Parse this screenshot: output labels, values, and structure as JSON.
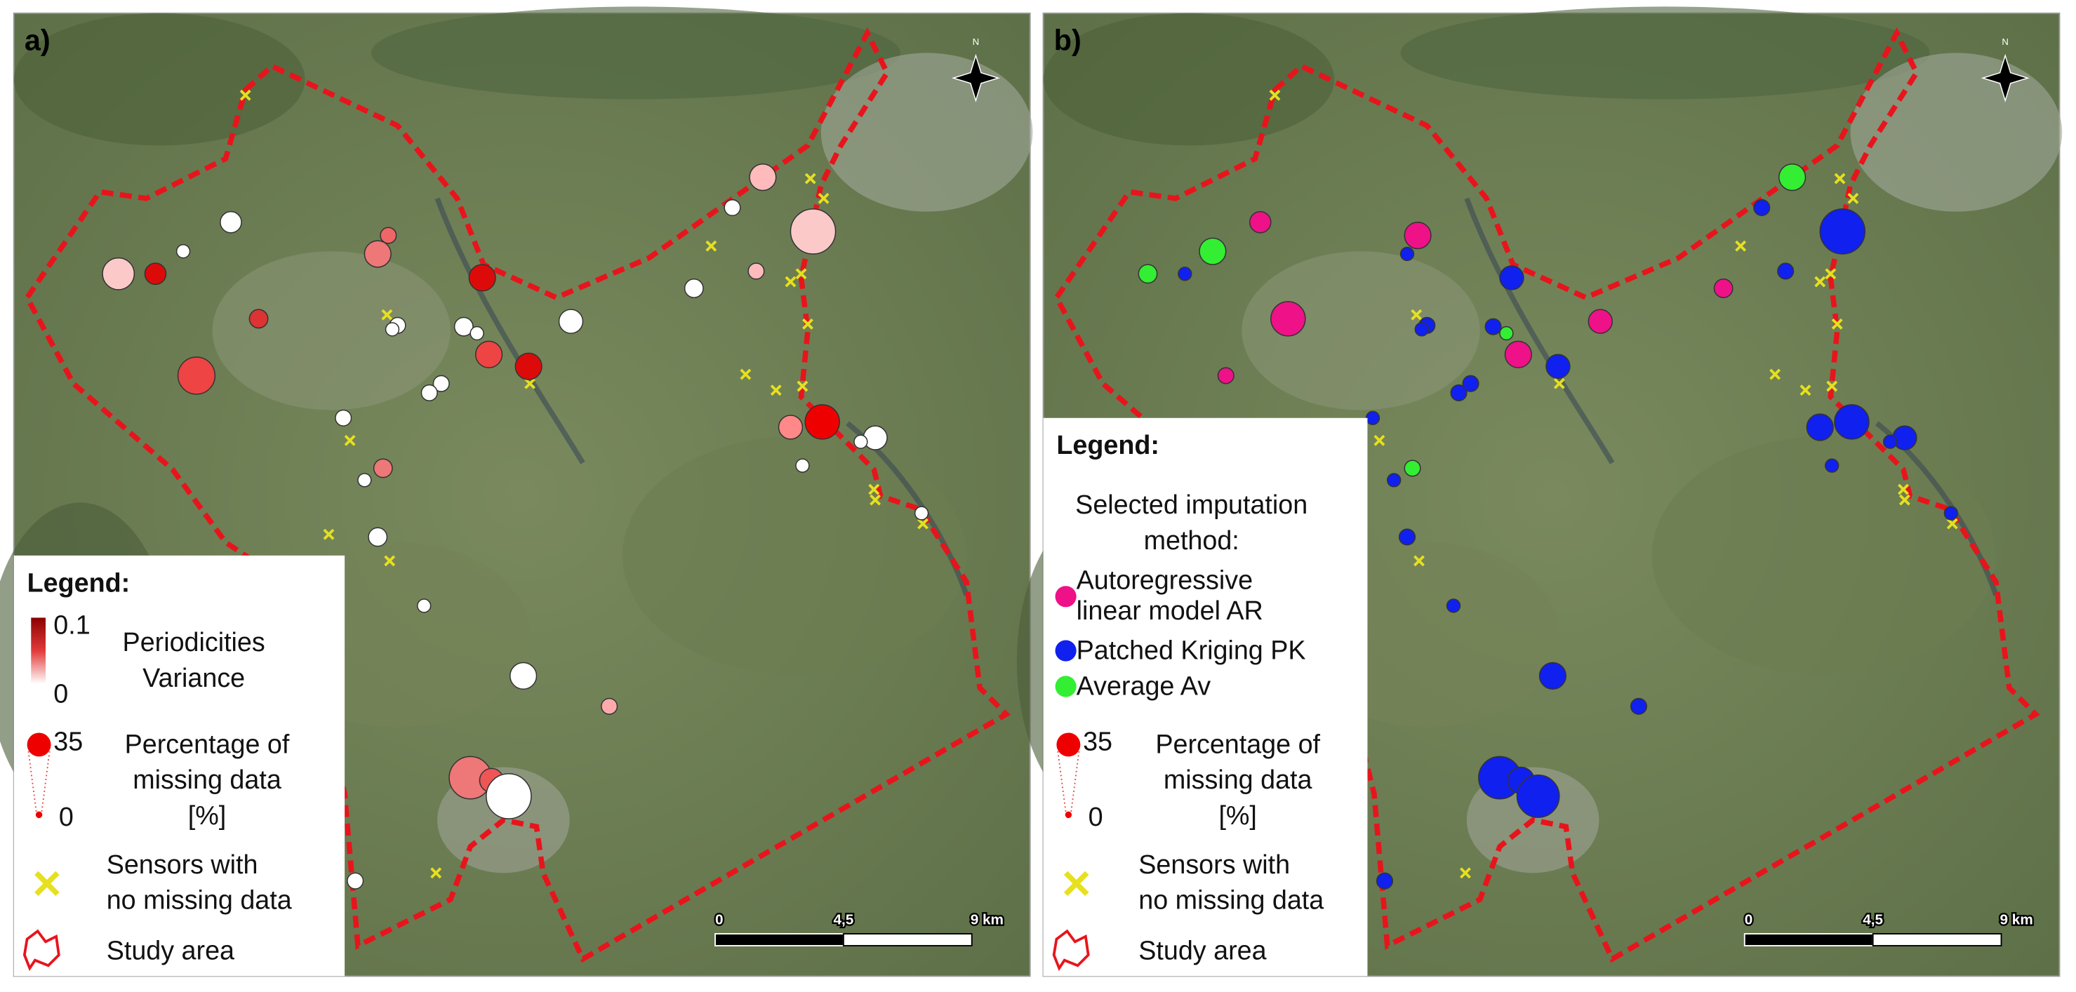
{
  "panels": [
    {
      "label": "a)",
      "north": "N",
      "scale": [
        "0",
        "4,5",
        "9 km"
      ],
      "legend": {
        "title": "Legend:",
        "variance_max": "0.1",
        "variance_min": "0",
        "variance_lines": [
          "Periodicities",
          "Variance"
        ],
        "size_max": "35",
        "size_min": "0",
        "size_lines": [
          "Percentage of",
          "missing data",
          "[%]"
        ],
        "sensors_lines": [
          "Sensors with",
          "no missing data"
        ],
        "area": "Study area"
      },
      "points": [
        {
          "missing": 24,
          "color": "#fcc9c9"
        },
        {
          "missing": 16,
          "color": "#dd0a0a"
        },
        {
          "missing": 10,
          "color": "#ffffff"
        },
        {
          "missing": 16,
          "color": "#ffffff"
        },
        {
          "missing": 28,
          "color": "#ee4444"
        },
        {
          "missing": 14,
          "color": "#dd3333"
        },
        {
          "missing": 12,
          "color": "#ee6666"
        },
        {
          "missing": 20,
          "color": "#ee7777"
        },
        {
          "missing": 20,
          "color": "#dd0a0a"
        },
        {
          "missing": 12,
          "color": "#ffffff"
        },
        {
          "missing": 10,
          "color": "#ffffff"
        },
        {
          "missing": 14,
          "color": "#ffffff"
        },
        {
          "missing": 10,
          "color": "#ffffff"
        },
        {
          "missing": 20,
          "color": "#ee4444"
        },
        {
          "missing": 20,
          "color": "#dd0a0a"
        },
        {
          "missing": 18,
          "color": "#ffffff"
        },
        {
          "missing": 12,
          "color": "#ffffff"
        },
        {
          "missing": 12,
          "color": "#ffffff"
        },
        {
          "missing": 12,
          "color": "#ffffff"
        },
        {
          "missing": 14,
          "color": "#ee7777"
        },
        {
          "missing": 10,
          "color": "#ffffff"
        },
        {
          "missing": 14,
          "color": "#ffffff"
        },
        {
          "missing": 10,
          "color": "#ffffff"
        },
        {
          "missing": 20,
          "color": "#ffffff"
        },
        {
          "missing": 12,
          "color": "#ffaaaa"
        },
        {
          "missing": 32,
          "color": "#ee7777"
        },
        {
          "missing": 18,
          "color": "#ee5555"
        },
        {
          "missing": 34,
          "color": "#ffffff"
        },
        {
          "missing": 12,
          "color": "#ffffff"
        },
        {
          "missing": 20,
          "color": "#ffbbbb"
        },
        {
          "missing": 12,
          "color": "#ffffff"
        },
        {
          "missing": 34,
          "color": "#fcc9c9"
        },
        {
          "missing": 12,
          "color": "#ffbbbb"
        },
        {
          "missing": 14,
          "color": "#ffffff"
        },
        {
          "missing": 18,
          "color": "#ff8888"
        },
        {
          "missing": 26,
          "color": "#ee0000"
        },
        {
          "missing": 10,
          "color": "#ffffff"
        },
        {
          "missing": 18,
          "color": "#ffffff"
        },
        {
          "missing": 10,
          "color": "#ffffff"
        },
        {
          "missing": 10,
          "color": "#ffffff"
        }
      ]
    },
    {
      "label": "b)",
      "north": "N",
      "scale": [
        "0",
        "4,5",
        "9 km"
      ],
      "legend": {
        "title": "Legend:",
        "method_lines": [
          "Selected imputation",
          "method:"
        ],
        "methods": [
          {
            "lines": [
              "Autoregressive",
              "linear model AR"
            ],
            "color": "#ee1188"
          },
          {
            "lines": [
              "Patched Kriging PK"
            ],
            "color": "#1020ee"
          },
          {
            "lines": [
              "Average Av"
            ],
            "color": "#33ee33"
          }
        ],
        "size_max": "35",
        "size_min": "0",
        "size_lines": [
          "Percentage of",
          "missing data",
          "[%]"
        ],
        "sensors_lines": [
          "Sensors with",
          "no missing data"
        ],
        "area": "Study area"
      },
      "points": [
        {
          "missing": 14,
          "color": "#33ee33"
        },
        {
          "missing": 10,
          "color": "#1020ee"
        },
        {
          "missing": 20,
          "color": "#33ee33"
        },
        {
          "missing": 16,
          "color": "#ee1188"
        },
        {
          "missing": 12,
          "color": "#ee1188"
        },
        {
          "missing": 26,
          "color": "#ee1188"
        },
        {
          "missing": 20,
          "color": "#ee1188"
        },
        {
          "missing": 10,
          "color": "#1020ee"
        },
        {
          "missing": 18,
          "color": "#1020ee"
        },
        {
          "missing": 12,
          "color": "#1020ee"
        },
        {
          "missing": 10,
          "color": "#1020ee"
        },
        {
          "missing": 12,
          "color": "#1020ee"
        },
        {
          "missing": 10,
          "color": "#33ee33"
        },
        {
          "missing": 20,
          "color": "#ee1188"
        },
        {
          "missing": 18,
          "color": "#1020ee"
        },
        {
          "missing": 18,
          "color": "#ee1188"
        },
        {
          "missing": 12,
          "color": "#1020ee"
        },
        {
          "missing": 12,
          "color": "#1020ee"
        },
        {
          "missing": 10,
          "color": "#1020ee"
        },
        {
          "missing": 12,
          "color": "#33ee33"
        },
        {
          "missing": 10,
          "color": "#1020ee"
        },
        {
          "missing": 12,
          "color": "#1020ee"
        },
        {
          "missing": 10,
          "color": "#1020ee"
        },
        {
          "missing": 20,
          "color": "#1020ee"
        },
        {
          "missing": 12,
          "color": "#1020ee"
        },
        {
          "missing": 32,
          "color": "#1020ee"
        },
        {
          "missing": 20,
          "color": "#1020ee"
        },
        {
          "missing": 32,
          "color": "#1020ee"
        },
        {
          "missing": 12,
          "color": "#1020ee"
        },
        {
          "missing": 20,
          "color": "#33ee33"
        },
        {
          "missing": 12,
          "color": "#1020ee"
        },
        {
          "missing": 34,
          "color": "#1020ee"
        },
        {
          "missing": 12,
          "color": "#1020ee"
        },
        {
          "missing": 14,
          "color": "#ee1188"
        },
        {
          "missing": 20,
          "color": "#1020ee"
        },
        {
          "missing": 26,
          "color": "#1020ee"
        },
        {
          "missing": 10,
          "color": "#1020ee"
        },
        {
          "missing": 18,
          "color": "#1020ee"
        },
        {
          "missing": 10,
          "color": "#1020ee"
        },
        {
          "missing": 10,
          "color": "#1020ee"
        }
      ]
    }
  ]
}
